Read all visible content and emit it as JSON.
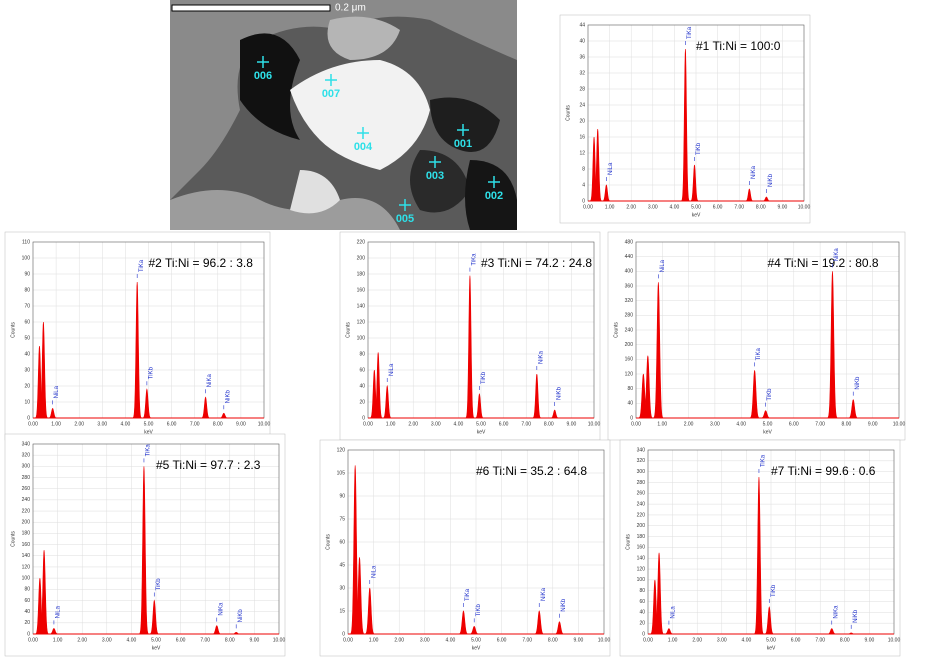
{
  "image": {
    "scale_label": "0.2 μm",
    "labels": [
      "006",
      "007",
      "004",
      "001",
      "003",
      "002",
      "005"
    ]
  },
  "xlabel": "keV",
  "ylabel": "Counts",
  "xlim": [
    0,
    10
  ],
  "xticks": [
    {
      "value": 0,
      "label": "0.00"
    },
    {
      "value": 1,
      "label": "1.00"
    },
    {
      "value": 2,
      "label": "2.00"
    },
    {
      "value": 3,
      "label": "3.00"
    },
    {
      "value": 4,
      "label": "4.00"
    },
    {
      "value": 5,
      "label": "5.00"
    },
    {
      "value": 6,
      "label": "6.00"
    },
    {
      "value": 7,
      "label": "7.00"
    },
    {
      "value": 8,
      "label": "8.00"
    },
    {
      "value": 9,
      "label": "9.00"
    },
    {
      "value": 10,
      "label": "10.00"
    }
  ],
  "spectra": [
    {
      "title": "#1 Ti:Ni = 100:0",
      "ylim": [
        0,
        44
      ],
      "yticks": [
        0,
        4,
        8,
        12,
        16,
        20,
        24,
        28,
        32,
        36,
        40,
        44
      ],
      "peaks": {
        "x": [
          0.28,
          0.45,
          0.85,
          4.51,
          4.93,
          7.47,
          8.26
        ],
        "values": [
          16,
          18,
          4,
          38,
          9,
          3,
          1
        ],
        "labels": [
          null,
          null,
          "NiLa",
          "TiKa",
          "TiKb",
          "NiKa",
          "NiKb"
        ]
      }
    },
    {
      "title": "#2 Ti:Ni = 96.2 : 3.8",
      "ylim": [
        0,
        110
      ],
      "yticks": [
        0,
        10,
        20,
        30,
        40,
        50,
        60,
        70,
        80,
        90,
        100,
        110
      ],
      "peaks": {
        "x": [
          0.28,
          0.45,
          0.85,
          4.51,
          4.93,
          7.47,
          8.26
        ],
        "values": [
          45,
          60,
          6,
          85,
          18,
          13,
          3
        ],
        "labels": [
          null,
          null,
          "NiLa",
          "TiKa",
          "TiKb",
          "NiKa",
          "NiKb"
        ]
      }
    },
    {
      "title": "#3 Ti:Ni = 74.2 : 24.8",
      "ylim": [
        0,
        220
      ],
      "yticks": [
        0,
        20,
        40,
        60,
        80,
        100,
        120,
        140,
        160,
        180,
        200,
        220
      ],
      "peaks": {
        "x": [
          0.28,
          0.45,
          0.85,
          4.51,
          4.93,
          7.47,
          8.26
        ],
        "values": [
          60,
          82,
          40,
          178,
          30,
          55,
          10
        ],
        "labels": [
          null,
          null,
          "NiLa",
          "TiKa",
          "TiKb",
          "NiKa",
          "NiKb"
        ]
      }
    },
    {
      "title": "#4 Ti:Ni = 19.2 : 80.8",
      "ylim": [
        0,
        480
      ],
      "yticks": [
        0,
        40,
        80,
        120,
        160,
        200,
        240,
        280,
        320,
        360,
        400,
        440,
        480
      ],
      "peaks": {
        "x": [
          0.28,
          0.45,
          0.85,
          4.51,
          4.93,
          7.47,
          8.26
        ],
        "values": [
          120,
          170,
          370,
          130,
          20,
          400,
          50
        ],
        "labels": [
          null,
          null,
          "NiLa",
          "TiKa",
          "TiKb",
          "NiKa",
          "NiKb"
        ]
      }
    },
    {
      "title": "#5 Ti:Ni = 97.7 : 2.3",
      "ylim": [
        0,
        340
      ],
      "yticks": [
        0,
        20,
        40,
        60,
        80,
        100,
        120,
        140,
        160,
        180,
        200,
        220,
        240,
        260,
        280,
        300,
        320,
        340
      ],
      "peaks": {
        "x": [
          0.28,
          0.45,
          0.85,
          4.51,
          4.93,
          7.47,
          8.26
        ],
        "values": [
          100,
          150,
          10,
          300,
          60,
          15,
          3
        ],
        "labels": [
          null,
          null,
          "NiLa",
          "TiKa",
          "TiKb",
          "NiKa",
          "NiKb"
        ]
      }
    },
    {
      "title": "#6 Ti:Ni = 35.2 : 64.8",
      "ylim": [
        0,
        120
      ],
      "yticks": [
        0,
        15,
        30,
        45,
        60,
        75,
        90,
        105,
        120
      ],
      "peaks": {
        "x": [
          0.28,
          0.45,
          0.85,
          4.51,
          4.93,
          7.47,
          8.26
        ],
        "values": [
          110,
          50,
          30,
          15,
          5,
          15,
          8
        ],
        "labels": [
          null,
          null,
          "NiLa",
          "TiKa",
          "TiKb",
          "NiKa",
          "NiKb"
        ]
      }
    },
    {
      "title": "#7 Ti:Ni = 99.6 : 0.6",
      "ylim": [
        0,
        340
      ],
      "yticks": [
        0,
        20,
        40,
        60,
        80,
        100,
        120,
        140,
        160,
        180,
        200,
        220,
        240,
        260,
        280,
        300,
        320,
        340
      ],
      "peaks": {
        "x": [
          0.28,
          0.45,
          0.85,
          4.51,
          4.93,
          7.47,
          8.26
        ],
        "values": [
          100,
          150,
          10,
          290,
          50,
          10,
          2
        ],
        "labels": [
          null,
          null,
          "NiLa",
          "TiKa",
          "TiKb",
          "NiKa",
          "NiKb"
        ]
      }
    }
  ]
}
